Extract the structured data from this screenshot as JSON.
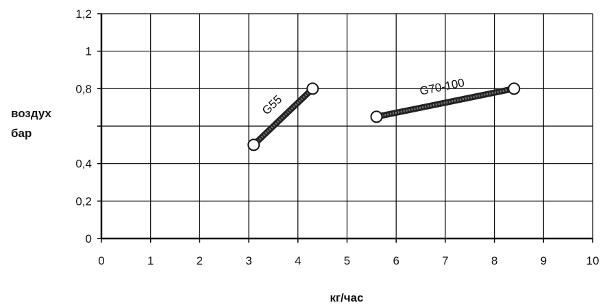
{
  "chart_data": {
    "type": "line",
    "title": "",
    "xlabel": "кг/час",
    "ylabel_lines": [
      "воздух",
      "бар"
    ],
    "xlim": [
      0,
      10
    ],
    "ylim": [
      0,
      1.2
    ],
    "x_ticks": [
      "0",
      "1",
      "2",
      "3",
      "4",
      "5",
      "6",
      "7",
      "8",
      "9",
      "10"
    ],
    "y_ticks": [
      {
        "value": 0,
        "label": "0"
      },
      {
        "value": 0.2,
        "label": "0,2"
      },
      {
        "value": 0.4,
        "label": "0,4"
      },
      {
        "value": 0.6,
        "label": ""
      },
      {
        "value": 0.8,
        "label": "0,8"
      },
      {
        "value": 1.0,
        "label": "1"
      },
      {
        "value": 1.2,
        "label": "1,2"
      }
    ],
    "grid": true,
    "series": [
      {
        "name": "G55",
        "x": [
          3.1,
          4.3
        ],
        "y": [
          0.5,
          0.8
        ]
      },
      {
        "name": "G70-100",
        "x": [
          5.6,
          8.4
        ],
        "y": [
          0.65,
          0.8
        ]
      }
    ],
    "colors": {
      "line": "#222222",
      "grid": "#000000",
      "marker_fill": "#ffffff"
    }
  }
}
